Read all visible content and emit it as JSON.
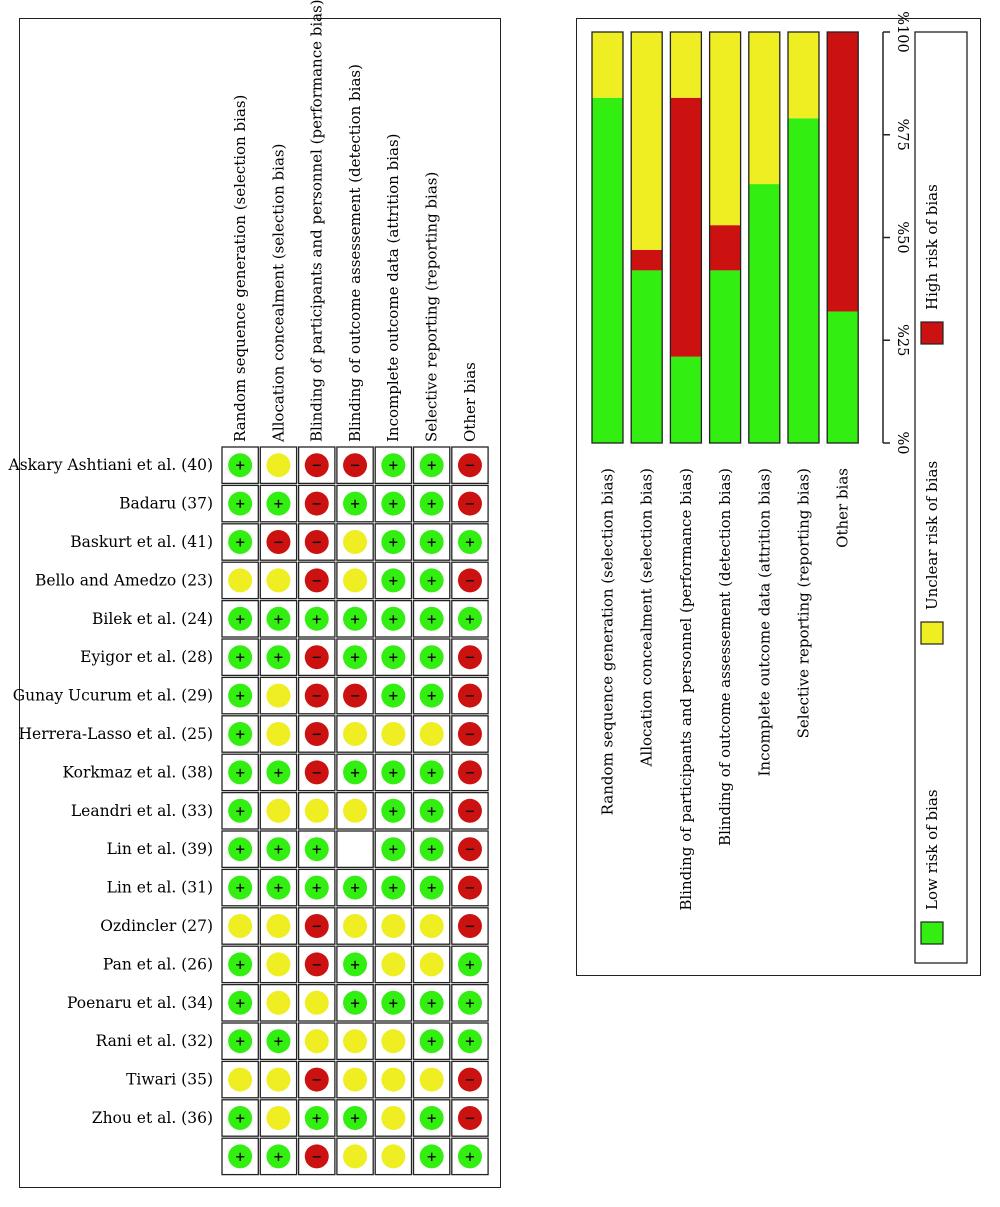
{
  "domains": [
    "Random sequence generation (selection bias)",
    "Allocation concealment (selection bias)",
    "Blinding of participants and personnel (performance bias)",
    "Blinding of outcome assessement (detection bias)",
    "Incomplete outcome data (attrition bias)",
    "Selective reporting (reporting bias)",
    "Other bias"
  ],
  "studies": [
    {
      "name": "Askary Ashtiani et al. (40)",
      "ratings": [
        "low",
        "unclear",
        "high",
        "high",
        "low",
        "low",
        "high"
      ]
    },
    {
      "name": "Badaru (37)",
      "ratings": [
        "low",
        "low",
        "high",
        "low",
        "low",
        "low",
        "high"
      ]
    },
    {
      "name": "Baskurt et al. (41)",
      "ratings": [
        "low",
        "high",
        "high",
        "unclear",
        "low",
        "low",
        "low"
      ]
    },
    {
      "name": "Bello and Amedzo (23)",
      "ratings": [
        "unclear",
        "unclear",
        "high",
        "unclear",
        "low",
        "low",
        "high"
      ]
    },
    {
      "name": "Bilek et al. (24)",
      "ratings": [
        "low",
        "low",
        "low",
        "low",
        "low",
        "low",
        "low"
      ]
    },
    {
      "name": "Eyigor et al. (28)",
      "ratings": [
        "low",
        "low",
        "high",
        "low",
        "low",
        "low",
        "high"
      ]
    },
    {
      "name": "Gunay Ucurum et al. (29)",
      "ratings": [
        "low",
        "unclear",
        "high",
        "high",
        "low",
        "low",
        "high"
      ]
    },
    {
      "name": "Herrera-Lasso et al. (25)",
      "ratings": [
        "low",
        "unclear",
        "high",
        "unclear",
        "unclear",
        "unclear",
        "high"
      ]
    },
    {
      "name": "Korkmaz et al. (38)",
      "ratings": [
        "low",
        "low",
        "high",
        "low",
        "low",
        "low",
        "high"
      ]
    },
    {
      "name": "Leandri et al. (33)",
      "ratings": [
        "low",
        "unclear",
        "unclear",
        "unclear",
        "low",
        "low",
        "high"
      ]
    },
    {
      "name": "Lin et al. (39)",
      "ratings": [
        "low",
        "low",
        "low",
        "",
        "low",
        "low",
        "high"
      ]
    },
    {
      "name": "Lin et al. (31)",
      "ratings": [
        "low",
        "low",
        "low",
        "low",
        "low",
        "low",
        "high"
      ]
    },
    {
      "name": "Ozdincler (27)",
      "ratings": [
        "unclear",
        "unclear",
        "high",
        "unclear",
        "unclear",
        "unclear",
        "high"
      ]
    },
    {
      "name": "Pan et al. (26)",
      "ratings": [
        "low",
        "unclear",
        "high",
        "low",
        "unclear",
        "unclear",
        "low"
      ]
    },
    {
      "name": "Poenaru et al. (34)",
      "ratings": [
        "low",
        "unclear",
        "unclear",
        "low",
        "low",
        "low",
        "low"
      ]
    },
    {
      "name": "Rani et al. (32)",
      "ratings": [
        "low",
        "low",
        "unclear",
        "unclear",
        "unclear",
        "low",
        "low"
      ]
    },
    {
      "name": "Tiwari (35)",
      "ratings": [
        "unclear",
        "unclear",
        "high",
        "unclear",
        "unclear",
        "unclear",
        "high"
      ]
    },
    {
      "name": "Zhou et al. (36)",
      "ratings": [
        "low",
        "unclear",
        "low",
        "low",
        "unclear",
        "low",
        "high"
      ]
    },
    {
      "name": "",
      "ratings": [
        "low",
        "low",
        "high",
        "unclear",
        "unclear",
        "low",
        "low"
      ]
    }
  ],
  "symbols": {
    "plus": "+",
    "minus": "−"
  },
  "colors": {
    "low": "#33ee11",
    "unclear": "#eeee22",
    "high": "#cc1111"
  },
  "chart_data": {
    "type": "bar",
    "orientation": "stacked-percent",
    "categories": [
      "Random sequence generation (selection bias)",
      "Allocation concealment (selection bias)",
      "Blinding of participants and personnel (performance bias)",
      "Blinding of outcome assessement (detection bias)",
      "Incomplete outcome data (attrition bias)",
      "Selective reporting (reporting bias)",
      "Other bias"
    ],
    "series": [
      {
        "name": "Low risk of bias",
        "color": "#33ee11",
        "values": [
          84,
          42,
          21,
          42,
          63,
          79,
          32
        ]
      },
      {
        "name": "Unclear risk of bias",
        "color": "#eeee22",
        "values": [
          16,
          53,
          16,
          47,
          37,
          21,
          0
        ]
      },
      {
        "name": "High risk of bias",
        "color": "#cc1111",
        "values": [
          0,
          5,
          63,
          11,
          0,
          0,
          68
        ]
      }
    ],
    "ticks": [
      "%0",
      "%25",
      "%50",
      "%75",
      "%100"
    ],
    "ylim": [
      0,
      100
    ],
    "legend": [
      "Low risk of bias",
      "Unclear risk of bias",
      "High risk of bias"
    ],
    "legend_position": "bottom"
  }
}
